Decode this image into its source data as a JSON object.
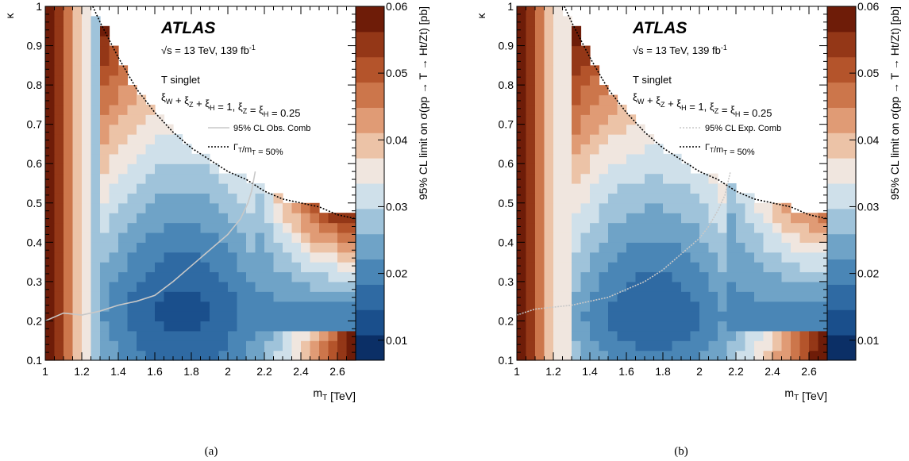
{
  "chart_data": [
    {
      "type": "heatmap",
      "caption": "(a)",
      "experiment": "ATLAS",
      "energy_lumi": "√s = 13 TeV, 139 fb",
      "lumi_exp": "-1",
      "model": "T singlet",
      "couplings": "ξ_W + ξ_Z + ξ_H = 1, ξ_Z = ξ_H = 0.25",
      "xlabel": "m_T [TeV]",
      "ylabel": "κ",
      "zlabel": "95% CL limit on σ(pp → T → Ht/Zt) [pb]",
      "xlim": [
        1.0,
        2.7
      ],
      "ylim": [
        0.1,
        1.0
      ],
      "zlim": [
        0.007,
        0.06
      ],
      "x_ticks": [
        1,
        1.2,
        1.4,
        1.6,
        1.8,
        2,
        2.2,
        2.4,
        2.6
      ],
      "y_ticks": [
        0.1,
        0.2,
        0.3,
        0.4,
        0.5,
        0.6,
        0.7,
        0.8,
        0.9,
        1
      ],
      "z_ticks": [
        0.01,
        0.02,
        0.03,
        0.04,
        0.05,
        0.06
      ],
      "legend": [
        {
          "label": "95% CL Obs. Comb",
          "style": "solid",
          "color": "#c8c8c8"
        },
        {
          "label": "Γ_T/m_T = 50%",
          "style": "dotted",
          "color": "#000000"
        }
      ],
      "limit_curve": {
        "x": [
          1.0,
          1.1,
          1.2,
          1.3,
          1.4,
          1.5,
          1.6,
          1.7,
          1.8,
          1.9,
          2.0,
          2.07,
          2.11,
          2.13,
          2.15
        ],
        "y": [
          0.2,
          0.22,
          0.215,
          0.225,
          0.24,
          0.25,
          0.265,
          0.3,
          0.34,
          0.38,
          0.42,
          0.46,
          0.5,
          0.53,
          0.58
        ]
      }
    },
    {
      "type": "heatmap",
      "caption": "(b)",
      "experiment": "ATLAS",
      "energy_lumi": "√s = 13 TeV, 139 fb",
      "lumi_exp": "-1",
      "model": "T singlet",
      "couplings": "ξ_W + ξ_Z + ξ_H = 1, ξ_Z = ξ_H = 0.25",
      "xlabel": "m_T [TeV]",
      "ylabel": "κ",
      "zlabel": "95% CL limit on σ(pp → T → Ht/Zt) [pb]",
      "xlim": [
        1.0,
        2.7
      ],
      "ylim": [
        0.1,
        1.0
      ],
      "zlim": [
        0.007,
        0.06
      ],
      "x_ticks": [
        1,
        1.2,
        1.4,
        1.6,
        1.8,
        2,
        2.2,
        2.4,
        2.6
      ],
      "y_ticks": [
        0.1,
        0.2,
        0.3,
        0.4,
        0.5,
        0.6,
        0.7,
        0.8,
        0.9,
        1
      ],
      "z_ticks": [
        0.01,
        0.02,
        0.03,
        0.04,
        0.05,
        0.06
      ],
      "legend": [
        {
          "label": "95% CL Exp. Comb",
          "style": "dotted",
          "color": "#c8c8c8"
        },
        {
          "label": "Γ_T/m_T = 50%",
          "style": "dotted",
          "color": "#000000"
        }
      ],
      "limit_curve": {
        "x": [
          1.0,
          1.1,
          1.2,
          1.3,
          1.4,
          1.5,
          1.6,
          1.7,
          1.8,
          1.9,
          2.0,
          2.05,
          2.1,
          2.14,
          2.17
        ],
        "y": [
          0.215,
          0.23,
          0.235,
          0.24,
          0.25,
          0.26,
          0.28,
          0.3,
          0.33,
          0.37,
          0.41,
          0.44,
          0.48,
          0.52,
          0.58
        ]
      }
    }
  ],
  "width_curve": {
    "x": [
      1.26,
      1.3,
      1.4,
      1.5,
      1.6,
      1.7,
      1.8,
      1.9,
      2.0,
      2.1,
      2.2,
      2.3,
      2.4,
      2.5,
      2.6,
      2.7
    ],
    "y": [
      1.0,
      0.96,
      0.87,
      0.79,
      0.73,
      0.68,
      0.64,
      0.61,
      0.58,
      0.56,
      0.53,
      0.51,
      0.5,
      0.49,
      0.47,
      0.46
    ]
  },
  "palette": [
    "#0b2f66",
    "#1a4f8c",
    "#2f6aa3",
    "#4a86b6",
    "#6fa3c7",
    "#9fc3da",
    "#cfe0ea",
    "#f0e6df",
    "#ecc3a7",
    "#e09b75",
    "#cc764b",
    "#b4542b",
    "#943717",
    "#6e1c08"
  ]
}
